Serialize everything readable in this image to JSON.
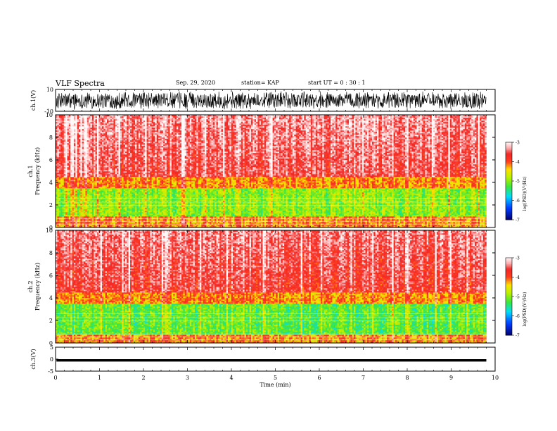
{
  "header": {
    "title": "VLF Spectra",
    "date": "Sep. 29, 2020",
    "station": "station= KAP",
    "start": "start UT =  0 : 30 : 1"
  },
  "chart_data": [
    {
      "type": "line",
      "id": "ch1-waveform",
      "ylabel": "ch.1(V)",
      "ylim": [
        -10,
        10
      ],
      "yticks": [
        10,
        -10
      ],
      "xlim": [
        0,
        10
      ],
      "description_note": "dense noise waveform filling roughly ±7 V"
    },
    {
      "type": "heatmap",
      "id": "ch1-spectrogram",
      "ylabel": "ch.1\nFrequency (kHz)",
      "ylabel_lines": [
        "ch.1",
        "Frequency (kHz)"
      ],
      "ylim": [
        0,
        10
      ],
      "yticks": [
        0,
        2,
        4,
        6,
        8,
        10
      ],
      "xlim": [
        0,
        10
      ],
      "data_extent_x": [
        0,
        9.8
      ],
      "colorbar": {
        "label": "log(PSD)(V²/Hz)",
        "ticks": [
          -3,
          -4,
          -5,
          -6,
          -7
        ],
        "range": [
          -7,
          -3
        ]
      },
      "bands": [
        {
          "f_low": 0,
          "f_high": 1.0,
          "level": -4.2
        },
        {
          "f_low": 1.0,
          "f_high": 3.5,
          "level": -5.0
        },
        {
          "f_low": 3.5,
          "f_high": 4.5,
          "level": -4.2
        },
        {
          "f_low": 4.5,
          "f_high": 10,
          "level": -3.6
        }
      ]
    },
    {
      "type": "heatmap",
      "id": "ch2-spectrogram",
      "ylabel_lines": [
        "ch.2",
        "Frequency (kHz)"
      ],
      "ylim": [
        0,
        10
      ],
      "yticks": [
        0,
        2,
        4,
        6,
        8,
        10
      ],
      "xlim": [
        0,
        10
      ],
      "data_extent_x": [
        0,
        9.8
      ],
      "colorbar": {
        "label": "log(PSD)(V²/Hz)",
        "ticks": [
          -3,
          -4,
          -5,
          -6,
          -7
        ],
        "range": [
          -7,
          -3
        ]
      },
      "bands": [
        {
          "f_low": 0,
          "f_high": 0.8,
          "level": -4.2
        },
        {
          "f_low": 0.8,
          "f_high": 3.5,
          "level": -5.2
        },
        {
          "f_low": 3.5,
          "f_high": 4.5,
          "level": -4.2
        },
        {
          "f_low": 4.5,
          "f_high": 10,
          "level": -3.7
        }
      ]
    },
    {
      "type": "line",
      "id": "ch3-waveform",
      "ylabel": "ch.3(V)",
      "ylim": [
        -5,
        5
      ],
      "yticks": [
        5,
        0,
        -5
      ],
      "xlim": [
        0,
        10
      ],
      "xlabel": "Time (min)",
      "xticks": [
        0,
        1,
        2,
        3,
        4,
        5,
        6,
        7,
        8,
        9,
        10
      ],
      "signal_band": [
        -1.0,
        0.0
      ]
    }
  ]
}
